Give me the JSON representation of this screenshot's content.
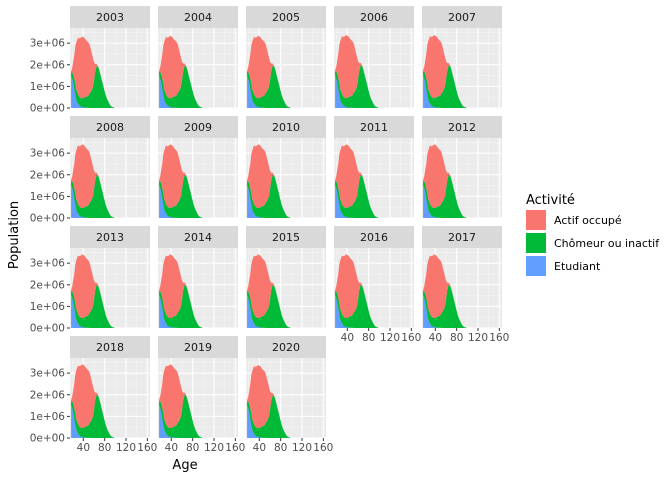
{
  "chart_data": {
    "type": "area",
    "layout": "facet_wrap",
    "facet_columns": 5,
    "xlabel": "Age",
    "ylabel": "Population",
    "xlim": [
      15,
      165
    ],
    "ylim": [
      0,
      3700000
    ],
    "x_ticks": [
      40,
      80,
      120,
      160
    ],
    "x_tick_labels": [
      "40",
      "80",
      "120",
      "160"
    ],
    "y_ticks": [
      0,
      1000000,
      2000000,
      3000000
    ],
    "y_tick_labels": [
      "0e+00",
      "1e+06",
      "2e+06",
      "3e+06"
    ],
    "stacked": true,
    "grid": true,
    "legend": {
      "title": "Activité",
      "position": "right",
      "entries": [
        {
          "name": "Actif occupé",
          "color": "#F8766D"
        },
        {
          "name": "Chômeur ou inactif",
          "color": "#00BA38"
        },
        {
          "name": "Etudiant",
          "color": "#619CFF"
        }
      ]
    },
    "age_profile": {
      "x": [
        17,
        19,
        21,
        23,
        25,
        27,
        30,
        33,
        36,
        38,
        40,
        42,
        45,
        48,
        50,
        52,
        55,
        58,
        60,
        62,
        65,
        68,
        70,
        72,
        75,
        78,
        80,
        82,
        85,
        88,
        90,
        92,
        95,
        97,
        99
      ],
      "series": [
        {
          "name": "Etudiant",
          "values": [
            1500000,
            1400000,
            1200000,
            900000,
            600000,
            350000,
            200000,
            100000,
            60000,
            40000,
            30000,
            20000,
            15000,
            10000,
            8000,
            5000,
            3000,
            2000,
            1000,
            500,
            0,
            0,
            0,
            0,
            0,
            0,
            0,
            0,
            0,
            0,
            0,
            0,
            0,
            0,
            0
          ]
        },
        {
          "name": "Chômeur ou inactif",
          "values": [
            200000,
            300000,
            400000,
            500000,
            550000,
            500000,
            450000,
            420000,
            400000,
            420000,
            450000,
            480000,
            520000,
            550000,
            600000,
            700000,
            800000,
            1000000,
            1300000,
            1700000,
            2000000,
            1950000,
            1800000,
            1600000,
            1300000,
            1000000,
            800000,
            600000,
            400000,
            250000,
            150000,
            80000,
            40000,
            20000,
            5000
          ]
        },
        {
          "name": "Actif occupé",
          "values": [
            50000,
            200000,
            600000,
            1100000,
            1800000,
            2300000,
            2700000,
            2800000,
            2900000,
            2950000,
            2900000,
            2850000,
            2700000,
            2600000,
            2500000,
            2300000,
            1900000,
            1400000,
            900000,
            400000,
            100000,
            30000,
            10000,
            5000,
            0,
            0,
            0,
            0,
            0,
            0,
            0,
            0,
            0,
            0,
            0
          ]
        }
      ]
    },
    "facets": [
      {
        "label": "2003",
        "scale": 0.97
      },
      {
        "label": "2004",
        "scale": 0.98
      },
      {
        "label": "2005",
        "scale": 0.98
      },
      {
        "label": "2006",
        "scale": 0.99
      },
      {
        "label": "2007",
        "scale": 0.99
      },
      {
        "label": "2008",
        "scale": 1.0
      },
      {
        "label": "2009",
        "scale": 1.0
      },
      {
        "label": "2010",
        "scale": 1.0
      },
      {
        "label": "2011",
        "scale": 1.0
      },
      {
        "label": "2012",
        "scale": 1.0
      },
      {
        "label": "2013",
        "scale": 1.0
      },
      {
        "label": "2014",
        "scale": 1.0
      },
      {
        "label": "2015",
        "scale": 1.0
      },
      {
        "label": "2016",
        "scale": 1.0
      },
      {
        "label": "2017",
        "scale": 1.0
      },
      {
        "label": "2018",
        "scale": 1.0
      },
      {
        "label": "2019",
        "scale": 1.0
      },
      {
        "label": "2020",
        "scale": 0.99
      }
    ]
  }
}
